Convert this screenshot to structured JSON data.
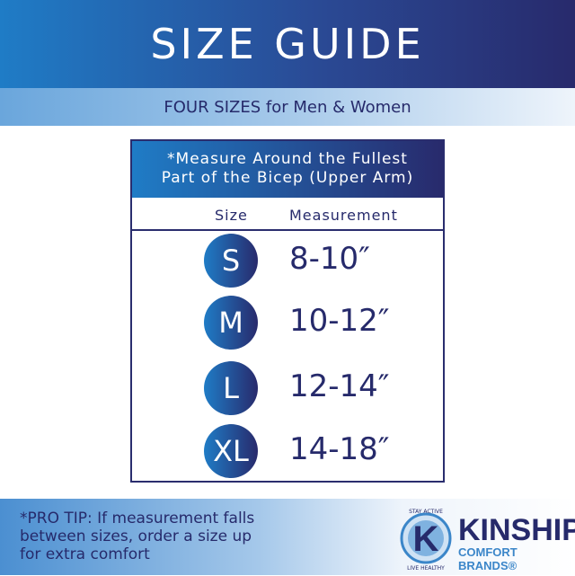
{
  "header": {
    "title": "SIZE GUIDE",
    "subtitle": "FOUR SIZES for Men & Women"
  },
  "table": {
    "note_line1": "*Measure Around the Fullest",
    "note_line2": "Part of the Bicep (Upper Arm)",
    "col_size": "Size",
    "col_measurement": "Measurement",
    "rows": [
      {
        "size": "S",
        "measurement": "8-10″"
      },
      {
        "size": "M",
        "measurement": "10-12″"
      },
      {
        "size": "L",
        "measurement": "12-14″"
      },
      {
        "size": "XL",
        "measurement": "14-18″"
      }
    ]
  },
  "footer": {
    "tip_line1": "*PRO TIP: If measurement falls",
    "tip_line2": "between sizes, order a size up",
    "tip_line3": "for extra comfort"
  },
  "logo": {
    "name": "KINSHIP",
    "brand": "COMFORT BRANDS®",
    "top_arc": "STAY ACTIVE",
    "bottom_arc": "LIVE HEALTHY",
    "letter": "K"
  },
  "colors": {
    "navy": "#282a6c",
    "blue": "#1f7cc6"
  }
}
